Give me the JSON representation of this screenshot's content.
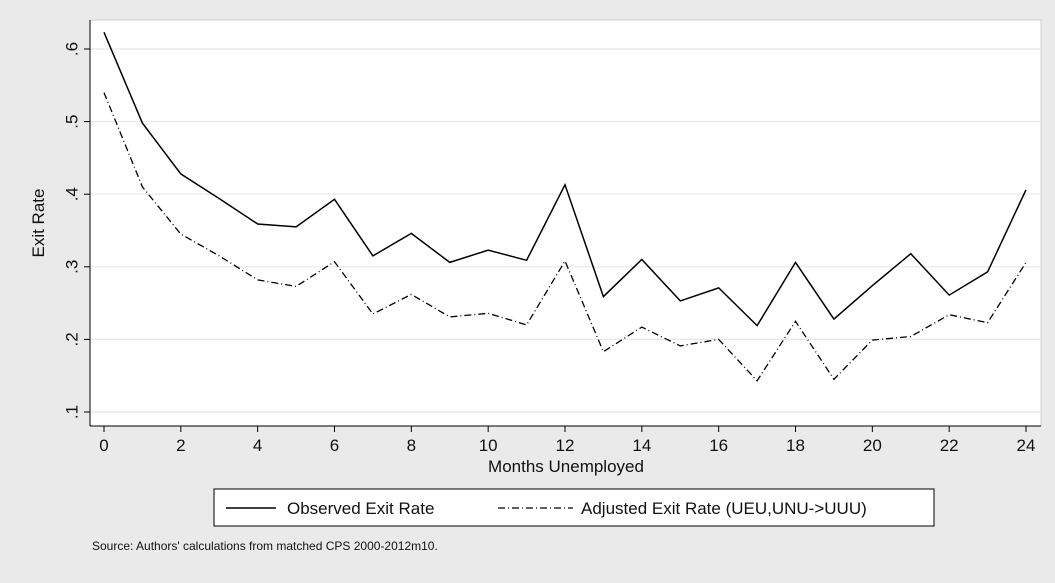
{
  "chart_data": {
    "type": "line",
    "xlabel": "Months Unemployed",
    "ylabel": "Exit Rate",
    "xlim": [
      0,
      24
    ],
    "ylim": [
      0.1,
      0.6
    ],
    "x_ticks": [
      0,
      2,
      4,
      6,
      8,
      10,
      12,
      14,
      16,
      18,
      20,
      22,
      24
    ],
    "y_ticks": [
      0.1,
      0.2,
      0.3,
      0.4,
      0.5,
      0.6
    ],
    "y_tick_labels": [
      ".1",
      ".2",
      ".3",
      ".4",
      ".5",
      ".6"
    ],
    "grid": true,
    "legend_placement": "bottom",
    "x": [
      0,
      1,
      2,
      3,
      4,
      5,
      6,
      7,
      8,
      9,
      10,
      11,
      12,
      13,
      14,
      15,
      16,
      17,
      18,
      19,
      20,
      21,
      22,
      23,
      24
    ],
    "series": [
      {
        "name": "Observed Exit Rate",
        "style": "solid",
        "color": "#000000",
        "values": [
          0.623,
          0.498,
          0.428,
          0.394,
          0.359,
          0.355,
          0.393,
          0.315,
          0.346,
          0.306,
          0.323,
          0.309,
          0.413,
          0.259,
          0.31,
          0.253,
          0.271,
          0.219,
          0.306,
          0.228,
          0.274,
          0.318,
          0.261,
          0.293,
          0.406
        ]
      },
      {
        "name": "Adjusted Exit Rate (UEU,UNU->UUU)",
        "style": "dash-dot",
        "color": "#000000",
        "values": [
          0.54,
          0.41,
          0.345,
          0.315,
          0.282,
          0.273,
          0.307,
          0.235,
          0.262,
          0.231,
          0.236,
          0.22,
          0.308,
          0.183,
          0.217,
          0.191,
          0.2,
          0.143,
          0.225,
          0.145,
          0.199,
          0.204,
          0.234,
          0.223,
          0.306
        ]
      }
    ],
    "note": "Source: Authors' calculations from matched CPS 2000-2012m10."
  },
  "colors": {
    "background": "#eaeaea",
    "plot_area": "#ffffff",
    "grid": "#e8e8e8",
    "line": "#000000"
  }
}
